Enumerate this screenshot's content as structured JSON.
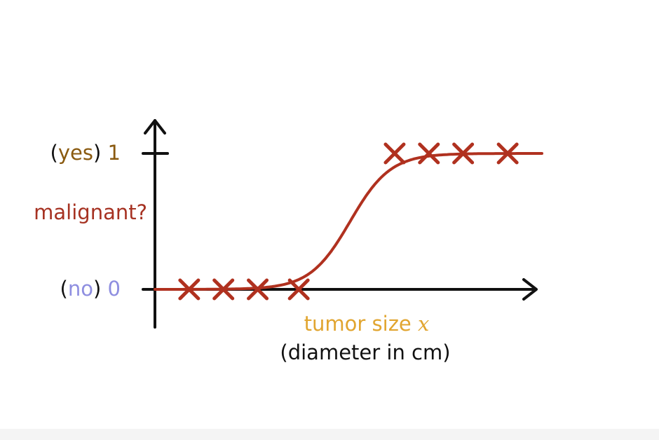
{
  "chart_data": {
    "type": "scatter",
    "ylabel": "malignant?",
    "y_ticks": [
      {
        "prefix": "(",
        "word": "yes",
        "suffix": ") ",
        "value": "1"
      },
      {
        "prefix": "(",
        "word": "no",
        "suffix": ") ",
        "value": "0"
      }
    ],
    "xlabel": {
      "main": "tumor size ",
      "variable": "x",
      "sub": "(diameter in cm)"
    },
    "points": [
      {
        "x": 1,
        "y": 0
      },
      {
        "x": 2,
        "y": 0
      },
      {
        "x": 3,
        "y": 0
      },
      {
        "x": 4.2,
        "y": 0
      },
      {
        "x": 7,
        "y": 1
      },
      {
        "x": 8,
        "y": 1
      },
      {
        "x": 9,
        "y": 1
      },
      {
        "x": 10.3,
        "y": 1
      }
    ],
    "curve": {
      "type": "sigmoid",
      "midpoint": 5.7,
      "steepness": 1.7
    },
    "xlim": [
      0,
      11.3
    ],
    "ylim": [
      0,
      1
    ],
    "grid": false,
    "colors": {
      "marks": "#b0311f",
      "axis": "#111111",
      "ylabel": "#a63222",
      "yes": "#8a5a10",
      "no": "#8e8ee0",
      "xlabel": "#e1a530",
      "text": "#111111"
    }
  }
}
